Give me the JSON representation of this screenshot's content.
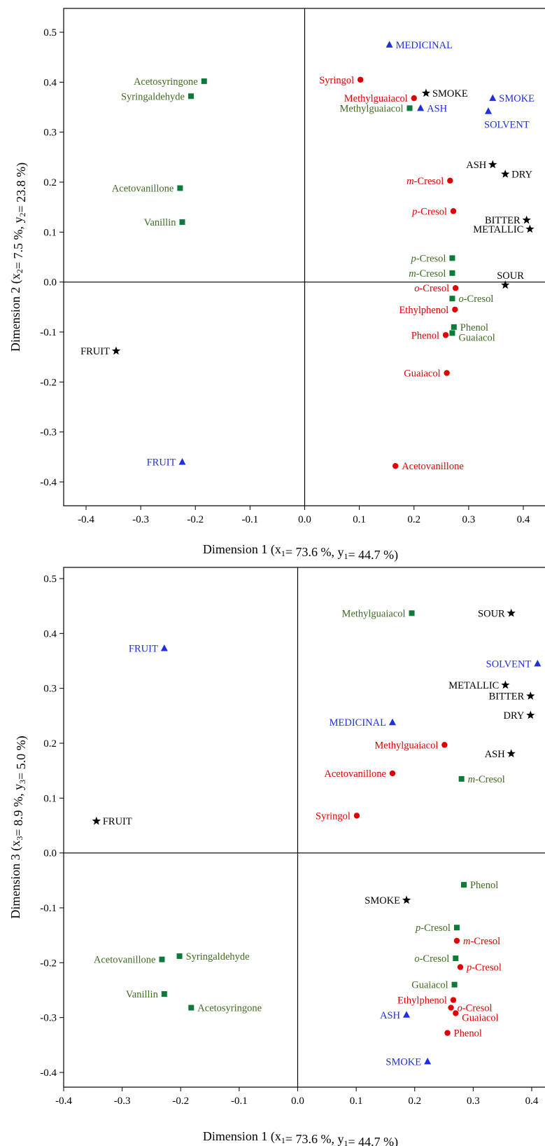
{
  "colors": {
    "black": "#000000",
    "blue": "#1f2fe0",
    "red": "#e00000",
    "green": "#0e7a3a",
    "green_text": "#3f6a22"
  },
  "markers": {
    "black": "star",
    "blue": "triangle",
    "red": "circle",
    "green": "square"
  },
  "chart_data": [
    {
      "type": "scatter",
      "xlabel": "Dimension 1 (x1= 73.6 %, y1= 44.7 %)",
      "ylabel": "Dimension 2 (x2= 7.5 %, y2= 23.8 %)",
      "xlim": [
        -0.44,
        0.44
      ],
      "ylim": [
        -0.45,
        0.54
      ],
      "xticks": [
        "-0.4",
        "-0.3",
        "-0.2",
        "-0.1",
        "0.0",
        "0.1",
        "0.2",
        "0.3",
        "0.4"
      ],
      "yticks": [
        "-0.4",
        "-0.3",
        "-0.2",
        "-0.1",
        "0.0",
        "0.1",
        "0.2",
        "0.3",
        "0.4",
        "0.5"
      ],
      "grid": false,
      "points": [
        {
          "label": "MEDICINAL",
          "x": 0.155,
          "y": 0.475,
          "color": "blue",
          "pos": "right"
        },
        {
          "label": "Syringol",
          "x": 0.102,
          "y": 0.405,
          "color": "red",
          "pos": "left"
        },
        {
          "label": "Acetosyringone",
          "x": -0.184,
          "y": 0.402,
          "color": "green",
          "pos": "left"
        },
        {
          "label": "SMOKE",
          "x": 0.222,
          "y": 0.378,
          "color": "black",
          "pos": "right"
        },
        {
          "label": "Syringaldehyde",
          "x": -0.208,
          "y": 0.372,
          "color": "green",
          "pos": "left"
        },
        {
          "label": "SMOKE",
          "x": 0.344,
          "y": 0.368,
          "color": "blue",
          "pos": "right"
        },
        {
          "label": "Methylguaiacol",
          "x": 0.2,
          "y": 0.368,
          "color": "red",
          "pos": "left"
        },
        {
          "label": "ASH",
          "x": 0.212,
          "y": 0.348,
          "color": "blue",
          "pos": "right"
        },
        {
          "label": "Methylguaiacol",
          "x": 0.192,
          "y": 0.348,
          "color": "green",
          "pos": "left"
        },
        {
          "label": "SOLVENT",
          "x": 0.336,
          "y": 0.342,
          "color": "blue",
          "pos": "below"
        },
        {
          "label": "ASH",
          "x": 0.344,
          "y": 0.235,
          "color": "black",
          "pos": "left"
        },
        {
          "label": "DRY",
          "x": 0.367,
          "y": 0.216,
          "color": "black",
          "pos": "right"
        },
        {
          "label": "m-Cresol",
          "x": 0.266,
          "y": 0.203,
          "color": "red",
          "pos": "left",
          "italic_prefix": "m"
        },
        {
          "label": "Acetovanillone",
          "x": -0.228,
          "y": 0.188,
          "color": "green",
          "pos": "left"
        },
        {
          "label": "p-Cresol",
          "x": 0.272,
          "y": 0.142,
          "color": "red",
          "pos": "left",
          "italic_prefix": "p"
        },
        {
          "label": "BITTER",
          "x": 0.406,
          "y": 0.124,
          "color": "black",
          "pos": "left"
        },
        {
          "label": "Vanillin",
          "x": -0.224,
          "y": 0.12,
          "color": "green",
          "pos": "left"
        },
        {
          "label": "METALLIC",
          "x": 0.412,
          "y": 0.106,
          "color": "black",
          "pos": "left"
        },
        {
          "label": "p-Cresol",
          "x": 0.27,
          "y": 0.048,
          "color": "green",
          "pos": "left",
          "italic_prefix": "p"
        },
        {
          "label": "m-Cresol",
          "x": 0.27,
          "y": 0.018,
          "color": "green",
          "pos": "left",
          "italic_prefix": "m"
        },
        {
          "label": "SOUR",
          "x": 0.367,
          "y": -0.006,
          "color": "black",
          "pos": "aboveright"
        },
        {
          "label": "o-Cresol",
          "x": 0.276,
          "y": -0.012,
          "color": "red",
          "pos": "left",
          "italic_prefix": "o"
        },
        {
          "label": "o-Cresol",
          "x": 0.27,
          "y": -0.033,
          "color": "green",
          "pos": "right",
          "italic_prefix": "o"
        },
        {
          "label": "Ethylphenol",
          "x": 0.275,
          "y": -0.055,
          "color": "red",
          "pos": "left"
        },
        {
          "label": "Phenol",
          "x": 0.273,
          "y": -0.09,
          "color": "green",
          "pos": "right"
        },
        {
          "label": "Guaiacol",
          "x": 0.27,
          "y": -0.102,
          "color": "green",
          "pos": "rightbelow"
        },
        {
          "label": "Phenol",
          "x": 0.258,
          "y": -0.106,
          "color": "red",
          "pos": "left"
        },
        {
          "label": "FRUIT",
          "x": -0.345,
          "y": -0.138,
          "color": "black",
          "pos": "left"
        },
        {
          "label": "Guaiacol",
          "x": 0.26,
          "y": -0.182,
          "color": "red",
          "pos": "left"
        },
        {
          "label": "FRUIT",
          "x": -0.224,
          "y": -0.36,
          "color": "blue",
          "pos": "left"
        },
        {
          "label": "Acetovanillone",
          "x": 0.166,
          "y": -0.368,
          "color": "red",
          "pos": "right"
        }
      ]
    },
    {
      "type": "scatter",
      "xlabel": "Dimension 1 (x1= 73.6 %, y1= 44.7 %)",
      "ylabel": "Dimension 3 (x3= 8.9 %, y3= 5.0 %)",
      "xlim": [
        -0.4,
        0.41
      ],
      "ylim": [
        -0.44,
        0.52
      ],
      "xticks": [
        "-0.4",
        "-0.3",
        "-0.2",
        "-0.1",
        "0.0",
        "0.1",
        "0.2",
        "0.3",
        "0.4"
      ],
      "yticks": [
        "-0.4",
        "-0.3",
        "-0.2",
        "-0.1",
        "0.0",
        "0.1",
        "0.2",
        "0.3",
        "0.4",
        "0.5"
      ],
      "grid": false,
      "points": [
        {
          "label": "Methylguaiacol",
          "x": 0.195,
          "y": 0.437,
          "color": "green",
          "pos": "left"
        },
        {
          "label": "SOUR",
          "x": 0.365,
          "y": 0.437,
          "color": "black",
          "pos": "left"
        },
        {
          "label": "FRUIT",
          "x": -0.228,
          "y": 0.373,
          "color": "blue",
          "pos": "left"
        },
        {
          "label": "SOLVENT",
          "x": 0.41,
          "y": 0.345,
          "color": "blue",
          "pos": "left"
        },
        {
          "label": "METALLIC",
          "x": 0.355,
          "y": 0.306,
          "color": "black",
          "pos": "left"
        },
        {
          "label": "BITTER",
          "x": 0.398,
          "y": 0.286,
          "color": "black",
          "pos": "left"
        },
        {
          "label": "DRY",
          "x": 0.398,
          "y": 0.251,
          "color": "black",
          "pos": "left"
        },
        {
          "label": "MEDICINAL",
          "x": 0.162,
          "y": 0.238,
          "color": "blue",
          "pos": "left"
        },
        {
          "label": "Methylguaiacol",
          "x": 0.251,
          "y": 0.197,
          "color": "red",
          "pos": "left"
        },
        {
          "label": "ASH",
          "x": 0.365,
          "y": 0.181,
          "color": "black",
          "pos": "left"
        },
        {
          "label": "Acetovanillone",
          "x": 0.162,
          "y": 0.145,
          "color": "red",
          "pos": "left"
        },
        {
          "label": "m-Cresol",
          "x": 0.28,
          "y": 0.135,
          "color": "green",
          "pos": "right",
          "italic_prefix": "m"
        },
        {
          "label": "Syringol",
          "x": 0.101,
          "y": 0.068,
          "color": "red",
          "pos": "left"
        },
        {
          "label": "FRUIT",
          "x": -0.344,
          "y": 0.058,
          "color": "black",
          "pos": "right"
        },
        {
          "label": "Phenol",
          "x": 0.284,
          "y": -0.058,
          "color": "green",
          "pos": "right"
        },
        {
          "label": "SMOKE",
          "x": 0.186,
          "y": -0.086,
          "color": "black",
          "pos": "left"
        },
        {
          "label": "p-Cresol",
          "x": 0.272,
          "y": -0.136,
          "color": "green",
          "pos": "left",
          "italic_prefix": "p"
        },
        {
          "label": "m-Cresol",
          "x": 0.272,
          "y": -0.16,
          "color": "red",
          "pos": "right",
          "italic_prefix": "m"
        },
        {
          "label": "Syringaldehyde",
          "x": -0.202,
          "y": -0.188,
          "color": "green",
          "pos": "right"
        },
        {
          "label": "o-Cresol",
          "x": 0.27,
          "y": -0.192,
          "color": "green",
          "pos": "left",
          "italic_prefix": "o"
        },
        {
          "label": "Acetovanillone",
          "x": -0.232,
          "y": -0.194,
          "color": "green",
          "pos": "left"
        },
        {
          "label": "p-Cresol",
          "x": 0.278,
          "y": -0.208,
          "color": "red",
          "pos": "right",
          "italic_prefix": "p"
        },
        {
          "label": "Guaiacol",
          "x": 0.268,
          "y": -0.24,
          "color": "green",
          "pos": "left"
        },
        {
          "label": "Vanillin",
          "x": -0.228,
          "y": -0.257,
          "color": "green",
          "pos": "left"
        },
        {
          "label": "Ethylphenol",
          "x": 0.266,
          "y": -0.268,
          "color": "red",
          "pos": "left"
        },
        {
          "label": "Acetosyringone",
          "x": -0.182,
          "y": -0.282,
          "color": "green",
          "pos": "right"
        },
        {
          "label": "o-Cresol",
          "x": 0.262,
          "y": -0.282,
          "color": "red",
          "pos": "right",
          "italic_prefix": "o"
        },
        {
          "label": "Guaiacol",
          "x": 0.27,
          "y": -0.292,
          "color": "red",
          "pos": "rightbelow"
        },
        {
          "label": "ASH",
          "x": 0.186,
          "y": -0.295,
          "color": "blue",
          "pos": "left"
        },
        {
          "label": "Phenol",
          "x": 0.256,
          "y": -0.328,
          "color": "red",
          "pos": "right"
        },
        {
          "label": "SMOKE",
          "x": 0.222,
          "y": -0.38,
          "color": "blue",
          "pos": "left"
        }
      ]
    }
  ]
}
